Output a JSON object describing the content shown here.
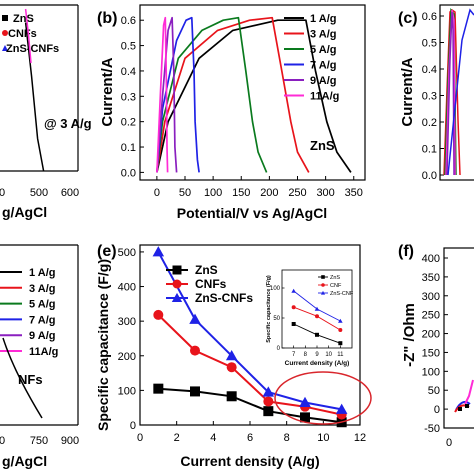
{
  "chart_data": [
    {
      "id": "a",
      "panel_label": "",
      "type": "line",
      "legend": [
        "ZnS",
        "CNFs",
        "ZnS-CNFs"
      ],
      "legend_colors": [
        "#000000",
        "#e8141b",
        "#1f22e6"
      ],
      "annotation": "@ 3 A/g",
      "xlabel_fragment": "g/AgCl",
      "x_ticks": [
        "0",
        "500",
        "600"
      ],
      "series": [
        {
          "name": "ZnS",
          "color": "#000000",
          "points": [
            [
              330,
              0.55
            ],
            [
              380,
              0.35
            ],
            [
              430,
              0.12
            ],
            [
              480,
              0.0
            ]
          ]
        },
        {
          "name": "ZnS-CNFs",
          "color": "#ff2bd6",
          "points": [
            [
              330,
              0.6
            ],
            [
              355,
              0.5
            ],
            [
              375,
              0.4
            ]
          ]
        }
      ]
    },
    {
      "id": "b",
      "panel_label": "(b)",
      "type": "line",
      "title": "",
      "xlabel": "Potential/V vs Ag/AgCl",
      "ylabel": "Current/A",
      "xlim": [
        -30,
        370
      ],
      "ylim": [
        -0.03,
        0.66
      ],
      "x_ticks": [
        0,
        50,
        100,
        150,
        200,
        250,
        300,
        350
      ],
      "y_ticks": [
        "0.0",
        "0.1",
        "0.2",
        "0.3",
        "0.4",
        "0.5",
        "0.6"
      ],
      "annotation": "ZnS",
      "series": [
        {
          "name": "1 A/g",
          "color": "#000000",
          "points": [
            [
              0,
              0.0
            ],
            [
              20,
              0.2
            ],
            [
              75,
              0.45
            ],
            [
              135,
              0.56
            ],
            [
              215,
              0.6
            ],
            [
              265,
              0.6
            ],
            [
              282,
              0.4
            ],
            [
              302,
              0.2
            ],
            [
              320,
              0.08
            ],
            [
              345,
              0.0
            ]
          ]
        },
        {
          "name": "3 A/g",
          "color": "#e8141b",
          "points": [
            [
              0,
              0.0
            ],
            [
              14,
              0.2
            ],
            [
              50,
              0.45
            ],
            [
              108,
              0.56
            ],
            [
              165,
              0.6
            ],
            [
              205,
              0.61
            ],
            [
              222,
              0.4
            ],
            [
              238,
              0.2
            ],
            [
              250,
              0.08
            ],
            [
              270,
              0.0
            ]
          ]
        },
        {
          "name": "5 A/g",
          "color": "#0a7a1e",
          "points": [
            [
              0,
              0.0
            ],
            [
              10,
              0.2
            ],
            [
              38,
              0.45
            ],
            [
              80,
              0.56
            ],
            [
              118,
              0.6
            ],
            [
              145,
              0.61
            ],
            [
              158,
              0.4
            ],
            [
              170,
              0.2
            ],
            [
              180,
              0.08
            ],
            [
              195,
              0.0
            ]
          ]
        },
        {
          "name": "7 A/g",
          "color": "#1f22e6",
          "points": [
            [
              0,
              0.0
            ],
            [
              10,
              0.25
            ],
            [
              35,
              0.52
            ],
            [
              52,
              0.6
            ],
            [
              62,
              0.61
            ],
            [
              66,
              0.4
            ],
            [
              68,
              0.2
            ],
            [
              72,
              0.05
            ],
            [
              75,
              0.0
            ]
          ]
        },
        {
          "name": "9 A/g",
          "color": "#8a1fbf",
          "points": [
            [
              0,
              0.0
            ],
            [
              10,
              0.3
            ],
            [
              20,
              0.56
            ],
            [
              27,
              0.61
            ],
            [
              30,
              0.4
            ],
            [
              32,
              0.1
            ],
            [
              35,
              0.0
            ]
          ]
        },
        {
          "name": "11A/g",
          "color": "#ff2bd6",
          "points": [
            [
              0,
              0.0
            ],
            [
              6,
              0.3
            ],
            [
              12,
              0.58
            ],
            [
              15,
              0.61
            ],
            [
              17,
              0.35
            ],
            [
              18,
              0.1
            ],
            [
              19,
              0.0
            ]
          ]
        }
      ]
    },
    {
      "id": "c",
      "panel_label": "(c)",
      "type": "line",
      "ylabel": "Current/A",
      "y_ticks": [
        "0.0",
        "0.1",
        "0.2",
        "0.3",
        "0.4",
        "0.5",
        "0.6"
      ]
    },
    {
      "id": "d",
      "panel_label": "",
      "type": "line",
      "legend": [
        "1 A/g",
        "3 A/g",
        "5 A/g",
        "7 A/g",
        "9 A/g",
        "11A/g"
      ],
      "legend_colors": [
        "#000000",
        "#e8141b",
        "#0a7a1e",
        "#1f22e6",
        "#8a1fbf",
        "#ff2bd6"
      ],
      "annotation": "NFs",
      "xlabel_fragment": "g/AgCl",
      "x_ticks": [
        "0",
        "750",
        "900"
      ],
      "series": [
        {
          "name": "1 A/g",
          "color": "#000000",
          "points": [
            [
              555,
              0.55
            ],
            [
              650,
              0.3
            ],
            [
              760,
              0.0
            ]
          ]
        }
      ]
    },
    {
      "id": "e",
      "panel_label": "(e)",
      "type": "line",
      "xlabel": "Current density (A/g)",
      "ylabel": "Specific capacitance (F/g)",
      "xlim": [
        0,
        12
      ],
      "ylim": [
        0,
        520
      ],
      "x_ticks": [
        0,
        2,
        4,
        6,
        8,
        10,
        12
      ],
      "y_ticks": [
        0,
        100,
        200,
        300,
        400,
        500
      ],
      "categories": [
        1,
        3,
        5,
        7,
        9,
        11
      ],
      "series": [
        {
          "name": "ZnS",
          "color": "#000000",
          "marker": "square",
          "values": [
            105,
            97,
            83,
            40,
            22,
            8
          ]
        },
        {
          "name": "CNFs",
          "color": "#e8141b",
          "marker": "circle",
          "values": [
            318,
            215,
            167,
            68,
            53,
            30
          ]
        },
        {
          "name": "ZnS-CNFs",
          "color": "#1f22e6",
          "marker": "triangle",
          "values": [
            500,
            305,
            200,
            95,
            65,
            45
          ]
        }
      ],
      "highlight_color": "#d9262c",
      "inset": {
        "xlabel": "Current density (A/g)",
        "ylabel": "Specific capacitance (F/g)",
        "xlim": [
          6,
          12
        ],
        "ylim": [
          0,
          130
        ],
        "x_ticks": [
          7,
          8,
          9,
          10,
          11
        ],
        "y_ticks": [
          0,
          50,
          100
        ],
        "legend": [
          "ZnS",
          "CNF",
          "ZnS-CNF"
        ],
        "categories": [
          7,
          9,
          11
        ],
        "series": [
          {
            "name": "ZnS",
            "color": "#000000",
            "marker": "square",
            "values": [
              40,
              22,
              8
            ]
          },
          {
            "name": "CNF",
            "color": "#e8141b",
            "marker": "circle",
            "values": [
              68,
              53,
              30
            ]
          },
          {
            "name": "ZnS-CNF",
            "color": "#1f22e6",
            "marker": "triangle",
            "values": [
              95,
              65,
              45
            ]
          }
        ]
      }
    },
    {
      "id": "f",
      "panel_label": "(f)",
      "type": "scatter",
      "ylabel": "-Z\" /Ohm",
      "ylim": [
        -50,
        400
      ],
      "y_ticks": [
        400,
        350,
        300,
        250,
        200,
        150,
        100,
        50,
        0,
        -50
      ],
      "x_ticks": [
        "0"
      ]
    }
  ]
}
